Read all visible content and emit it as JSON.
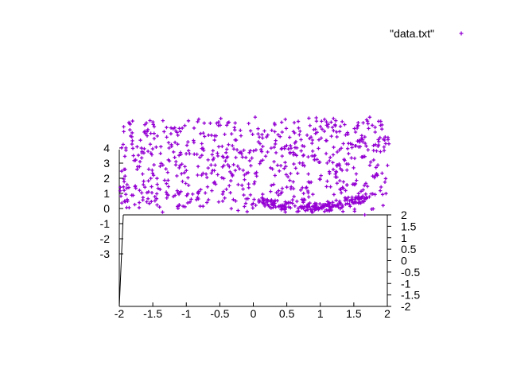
{
  "chart_data": {
    "type": "scatter",
    "title": "",
    "xlabel": "",
    "ylabel": "",
    "xlim": [
      -2,
      2
    ],
    "ylim": [
      -2,
      2
    ],
    "zlim": [
      -3,
      4
    ],
    "grid": false,
    "legend_position": "top-right",
    "series": [
      {
        "name": "\"data.txt\"",
        "color": "#9400d3",
        "marker": "plus",
        "n_points_approx": 1000,
        "description_values": "x in [-2,2], y in [-2,2], z in [0,4]; dense band near z≈0 around x≈0.8"
      }
    ],
    "x_ticks": [
      "-2",
      "-1.5",
      "-1",
      "-0.5",
      "0",
      "0.5",
      "1",
      "1.5",
      "2"
    ],
    "y_ticks": [
      "-2",
      "-1.5",
      "-1",
      "-0.5",
      "0",
      "0.5",
      "1",
      "1.5",
      "2"
    ],
    "z_ticks": [
      "-3",
      "-2",
      "-1",
      "0",
      "1",
      "2",
      "3",
      "4"
    ],
    "legend": {
      "label": "\"data.txt\""
    }
  }
}
